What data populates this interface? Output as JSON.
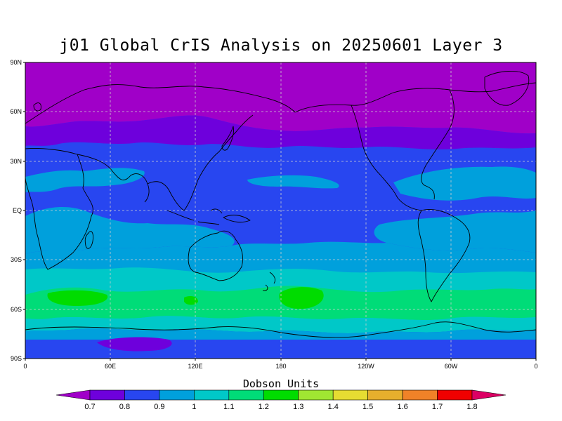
{
  "title": "j01 Global CrIS Analysis on 20250601 Layer 3",
  "lat_labels": [
    "90N",
    "60N",
    "30N",
    "EQ",
    "30S",
    "60S",
    "90S"
  ],
  "lon_labels": [
    "0",
    "60E",
    "120E",
    "180",
    "120W",
    "60W",
    "0"
  ],
  "legend": {
    "title": "Dobson Units",
    "labels": [
      "0.7",
      "0.8",
      "0.9",
      "1",
      "1.1",
      "1.2",
      "1.3",
      "1.4",
      "1.5",
      "1.6",
      "1.7",
      "1.8"
    ],
    "colors": [
      "#a000c8",
      "#6e00dc",
      "#2846f0",
      "#00a0dc",
      "#00c8c8",
      "#00dc78",
      "#00dc00",
      "#a0e632",
      "#e6dc32",
      "#e6af2d",
      "#f08228",
      "#f00000",
      "#dc0064"
    ]
  },
  "grid": "dashed lines every 30 degrees",
  "projection": "equirectangular, 0 to 360 longitude"
}
